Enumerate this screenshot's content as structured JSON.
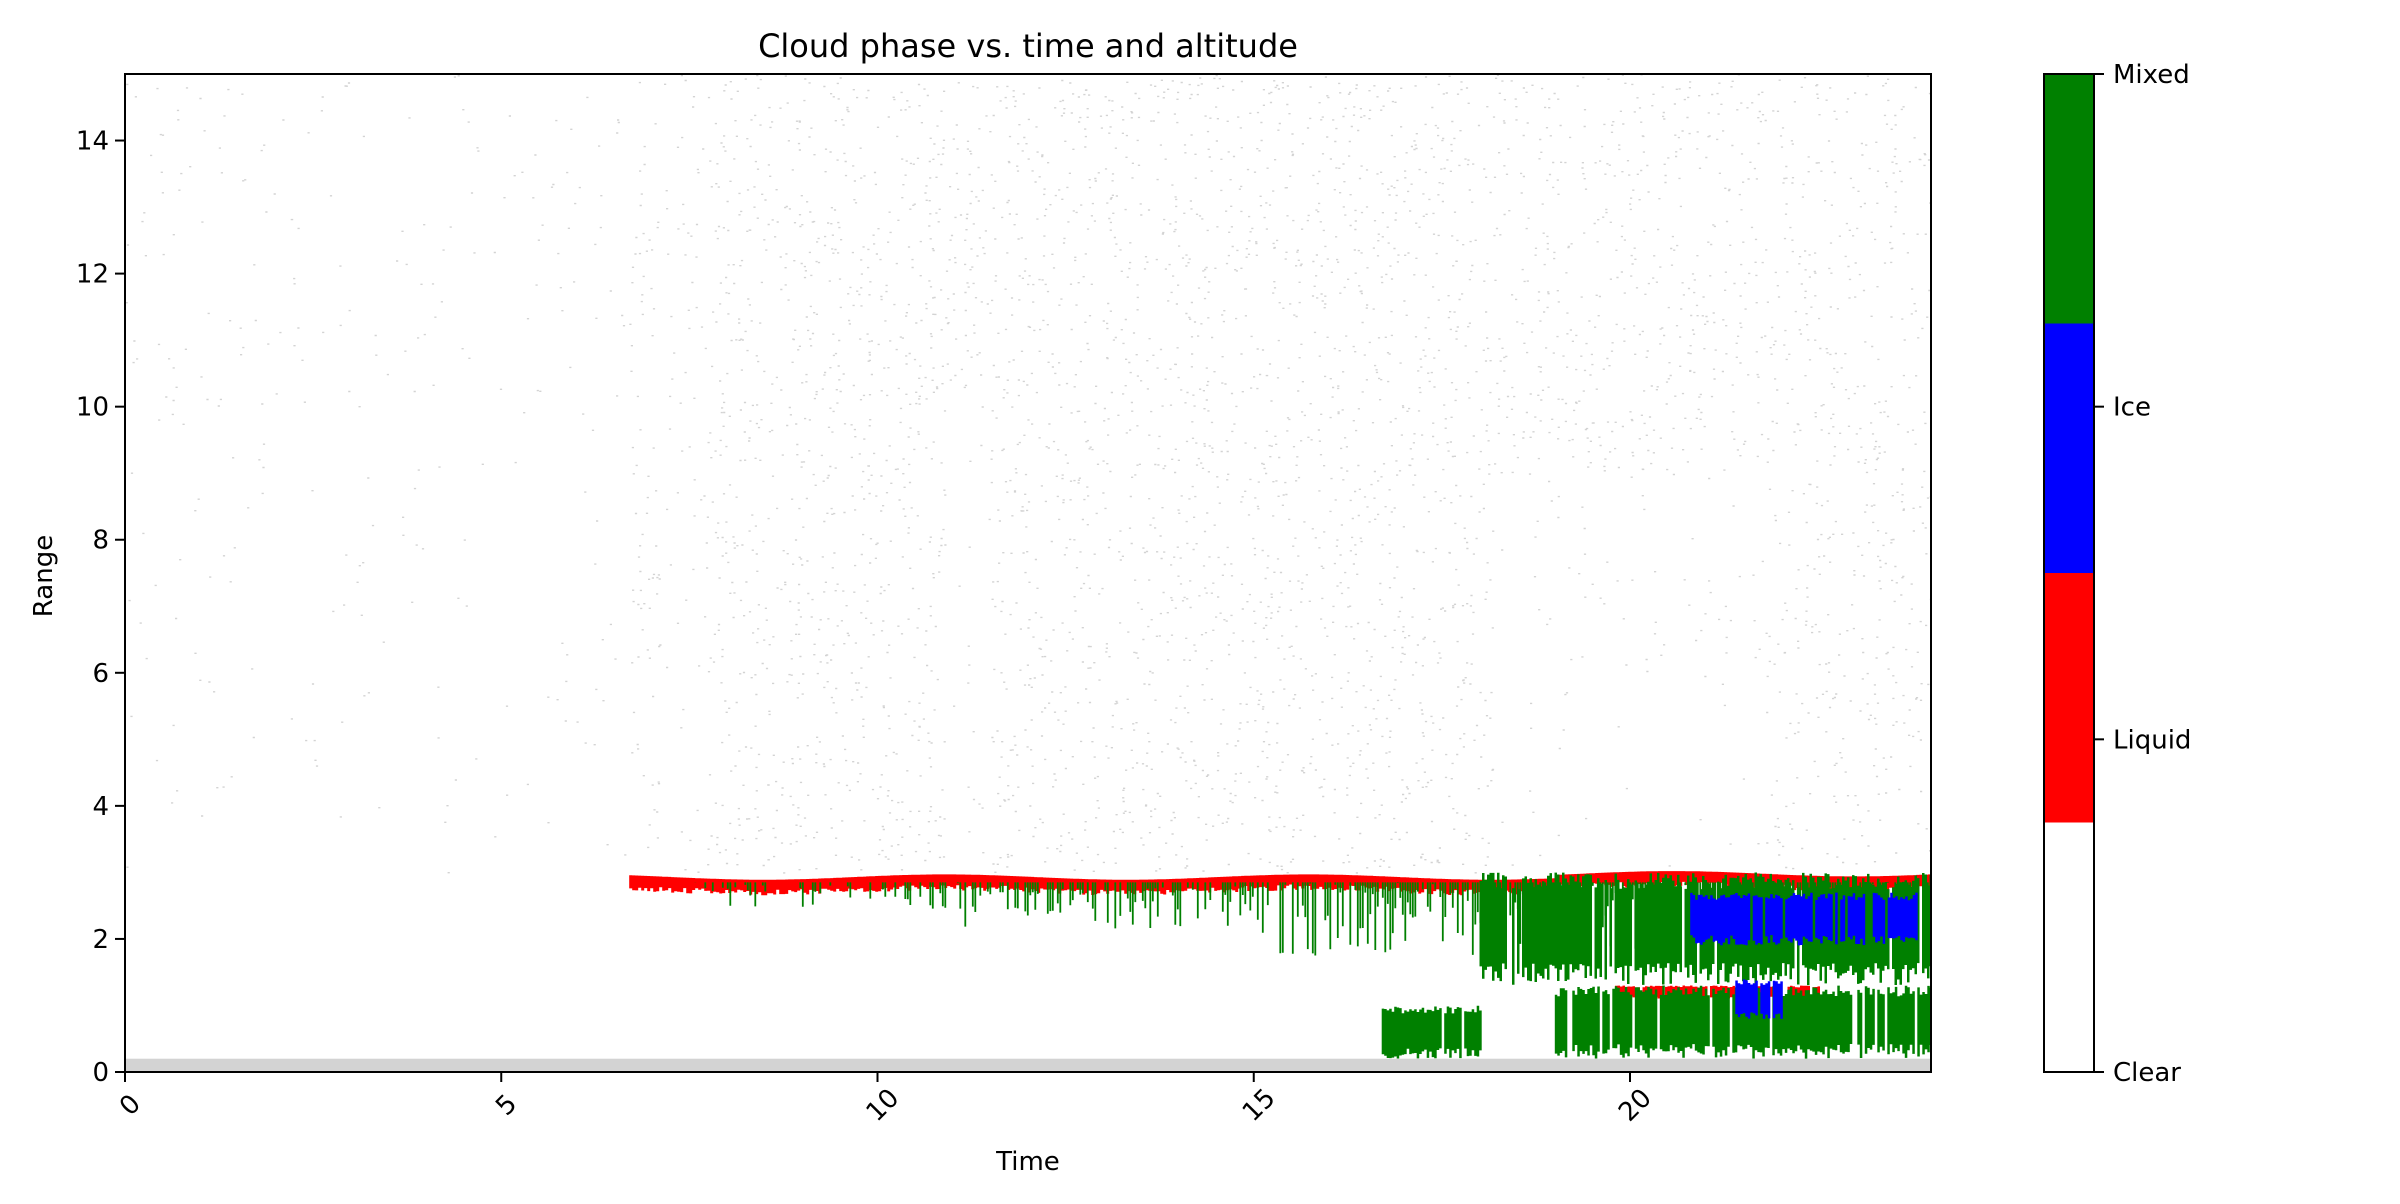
{
  "chart_data": {
    "type": "heatmap",
    "title": "Cloud phase vs. time and altitude",
    "xlabel": "Time",
    "ylabel": "Range",
    "xlim": [
      0,
      24
    ],
    "ylim": [
      0,
      15
    ],
    "x_ticks": [
      0,
      5,
      10,
      15,
      20
    ],
    "y_ticks": [
      0,
      2,
      4,
      6,
      8,
      10,
      12,
      14
    ],
    "x_tick_rotation": 45,
    "grid": false,
    "colorbar": {
      "categories": [
        "Clear",
        "Liquid",
        "Ice",
        "Mixed"
      ],
      "colors": [
        "#ffffff",
        "#ff0000",
        "#0000ff",
        "#008000"
      ]
    },
    "background_noise_color": "#d3d3d3",
    "features": [
      {
        "phase": "Clear (noise)",
        "x_range": [
          0,
          24
        ],
        "y_range": [
          3.0,
          15.0
        ],
        "note": "sparse light-gray speckle, dense between 7 and 24"
      },
      {
        "phase": "Clear (near-surface)",
        "x_range": [
          0,
          24
        ],
        "y_range": [
          0.0,
          0.2
        ]
      },
      {
        "phase": "Liquid",
        "x_range": [
          6.7,
          24
        ],
        "y_range": [
          2.75,
          3.0
        ],
        "note": "thin cloud-top layer"
      },
      {
        "phase": "Mixed",
        "x_range": [
          7.5,
          24
        ],
        "y_range": [
          1.8,
          2.9
        ],
        "note": "precipitating fall streaks below liquid layer"
      },
      {
        "phase": "Mixed",
        "x_range": [
          18.0,
          24
        ],
        "y_range": [
          1.3,
          3.0
        ],
        "note": "dense mixed-phase region"
      },
      {
        "phase": "Ice",
        "x_range": [
          20.8,
          23.8
        ],
        "y_range": [
          1.9,
          2.7
        ]
      },
      {
        "phase": "Liquid",
        "x_range": [
          19.8,
          22.5
        ],
        "y_range": [
          1.1,
          1.3
        ]
      },
      {
        "phase": "Mixed",
        "x_range": [
          16.7,
          18.0
        ],
        "y_range": [
          0.2,
          1.0
        ]
      },
      {
        "phase": "Mixed",
        "x_range": [
          19.0,
          24
        ],
        "y_range": [
          0.2,
          1.3
        ]
      },
      {
        "phase": "Ice",
        "x_range": [
          21.4,
          22.0
        ],
        "y_range": [
          0.8,
          1.4
        ]
      }
    ]
  }
}
